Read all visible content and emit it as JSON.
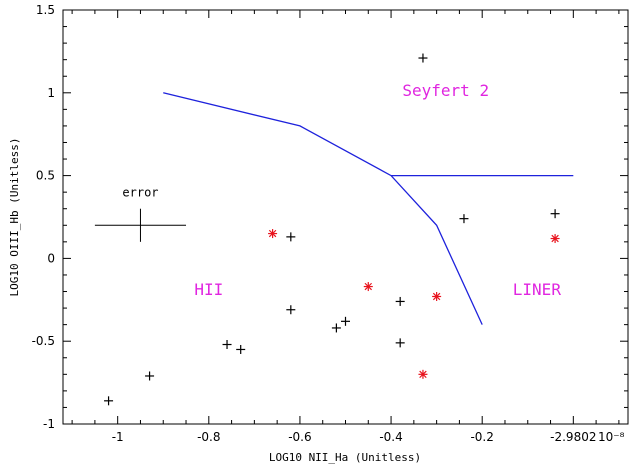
{
  "chart_data": {
    "type": "scatter",
    "xlabel": "LOG10 NII_Ha (Unitless)",
    "ylabel": "LOG10 OIII_Hb (Unitless)",
    "xlim": [
      -1.12,
      0.12
    ],
    "ylim": [
      -1.0,
      1.5
    ],
    "x_ticks": [
      {
        "value": -1.0,
        "label": "-1"
      },
      {
        "value": -0.8,
        "label": "-0.8"
      },
      {
        "value": -0.6,
        "label": "-0.6"
      },
      {
        "value": -0.4,
        "label": "-0.4"
      },
      {
        "value": -0.2,
        "label": "-0.2"
      },
      {
        "value": 0.0,
        "label": "-2.9802"
      }
    ],
    "x_exponent_label": "10⁻⁸",
    "y_ticks": [
      {
        "value": -1.0,
        "label": "-1"
      },
      {
        "value": -0.5,
        "label": "-0.5"
      },
      {
        "value": 0.0,
        "label": "0"
      },
      {
        "value": 0.5,
        "label": "0.5"
      },
      {
        "value": 1.0,
        "label": "1"
      },
      {
        "value": 1.5,
        "label": "1.5"
      }
    ],
    "grid": false,
    "series": [
      {
        "marker": "plus",
        "color": "#000000",
        "points": [
          [
            -1.02,
            -0.86
          ],
          [
            -0.93,
            -0.71
          ],
          [
            -0.76,
            -0.52
          ],
          [
            -0.73,
            -0.55
          ],
          [
            -0.62,
            0.13
          ],
          [
            -0.62,
            -0.31
          ],
          [
            -0.52,
            -0.42
          ],
          [
            -0.5,
            -0.38
          ],
          [
            -0.38,
            -0.26
          ],
          [
            -0.38,
            -0.51
          ],
          [
            -0.33,
            1.21
          ],
          [
            -0.24,
            0.24
          ],
          [
            -0.04,
            0.27
          ]
        ]
      },
      {
        "marker": "asterisk",
        "color": "#e8141e",
        "points": [
          [
            -0.66,
            0.15
          ],
          [
            -0.45,
            -0.17
          ],
          [
            -0.3,
            -0.23
          ],
          [
            -0.33,
            -0.7
          ],
          [
            -0.04,
            0.12
          ]
        ]
      }
    ],
    "boundary_lines": [
      {
        "color": "#1e22dc",
        "points": [
          [
            -0.9,
            1.0
          ],
          [
            -0.6,
            0.8
          ],
          [
            -0.4,
            0.5
          ],
          [
            -0.3,
            0.2
          ],
          [
            -0.2,
            -0.4
          ]
        ]
      },
      {
        "color": "#1e22dc",
        "points": [
          [
            -0.4,
            0.5
          ],
          [
            0.0,
            0.5
          ]
        ]
      }
    ],
    "region_labels": [
      {
        "text": "Seyfert 2",
        "x": -0.28,
        "y": 0.98,
        "color": "#e026e0"
      },
      {
        "text": "HII",
        "x": -0.8,
        "y": -0.22,
        "color": "#e026e0"
      },
      {
        "text": "LINER",
        "x": -0.08,
        "y": -0.22,
        "color": "#e026e0"
      }
    ],
    "error_bar": {
      "label": "error",
      "center": [
        -0.95,
        0.2
      ],
      "x_half": 0.1,
      "y_half": 0.1
    }
  }
}
